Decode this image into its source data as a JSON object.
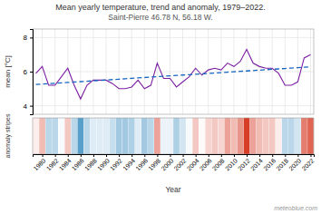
{
  "chart_data": [
    {
      "type": "line",
      "title": "Mean yearly temperature, trend and anomaly, 1979–2022.",
      "subtitle": "Saint-Pierre 46.78 N, 56.18 W.",
      "ylabel": "mean [°C]",
      "x": [
        1979,
        1980,
        1981,
        1982,
        1983,
        1984,
        1985,
        1986,
        1987,
        1988,
        1989,
        1990,
        1991,
        1992,
        1993,
        1994,
        1995,
        1996,
        1997,
        1998,
        1999,
        2000,
        2001,
        2002,
        2003,
        2004,
        2005,
        2006,
        2007,
        2008,
        2009,
        2010,
        2011,
        2012,
        2013,
        2014,
        2015,
        2016,
        2017,
        2018,
        2019,
        2020,
        2021,
        2022
      ],
      "xlim": [
        1978.5,
        2022.5
      ],
      "xticks": [
        1980,
        1982,
        1984,
        1986,
        1988,
        1990,
        1992,
        1994,
        1996,
        1998,
        2000,
        2002,
        2004,
        2006,
        2008,
        2010,
        2012,
        2014,
        2016,
        2018,
        2020,
        2022
      ],
      "ylim": [
        3.5,
        8.5
      ],
      "yticks": [
        4,
        6,
        8
      ],
      "grid": true,
      "tick_labels": "y",
      "series": [
        {
          "color": "#7b1fa2",
          "line_style": "solid",
          "values": [
            5.9,
            6.3,
            5.2,
            5.2,
            5.7,
            6.2,
            5.2,
            4.4,
            5.2,
            5.5,
            5.5,
            5.5,
            5.3,
            5.0,
            5.0,
            5.1,
            5.5,
            5.0,
            5.2,
            6.5,
            5.6,
            5.6,
            5.1,
            5.4,
            5.7,
            6.2,
            5.8,
            6.1,
            6.2,
            6.1,
            6.5,
            6.3,
            6.6,
            7.3,
            6.5,
            6.3,
            6.2,
            6.2,
            5.9,
            5.2,
            5.2,
            5.4,
            6.8,
            7.0
          ]
        },
        {
          "color": "#1565c0",
          "line_style": "dashed",
          "values": [
            5.2461,
            5.2701,
            5.2942,
            5.3183,
            5.3424,
            5.3664,
            5.3905,
            5.4146,
            5.4386,
            5.4627,
            5.4868,
            5.5109,
            5.5349,
            5.559,
            5.5831,
            5.6072,
            5.6312,
            5.6553,
            5.6794,
            5.7035,
            5.7275,
            5.7516,
            5.7757,
            5.7997,
            5.8238,
            5.8479,
            5.872,
            5.896,
            5.9201,
            5.9442,
            5.9683,
            5.9923,
            6.0164,
            6.0405,
            6.0646,
            6.0886,
            6.1127,
            6.1368,
            6.1608,
            6.1849,
            6.209,
            6.2331,
            6.2571,
            6.2812
          ]
        }
      ]
    },
    {
      "type": "heatmap",
      "xlabel": "Year",
      "ylabel": "anomaly stripes",
      "annotation": "meteoblue.com",
      "x": [
        1979,
        1980,
        1981,
        1982,
        1983,
        1984,
        1985,
        1986,
        1987,
        1988,
        1989,
        1990,
        1991,
        1992,
        1993,
        1994,
        1995,
        1996,
        1997,
        1998,
        1999,
        2000,
        2001,
        2002,
        2003,
        2004,
        2005,
        2006,
        2007,
        2008,
        2009,
        2010,
        2011,
        2012,
        2013,
        2014,
        2015,
        2016,
        2017,
        2018,
        2019,
        2020,
        2021,
        2022
      ],
      "xlim": [
        1978.5,
        2022.5
      ],
      "xticks": [
        1980,
        1982,
        1984,
        1986,
        1988,
        1990,
        1992,
        1994,
        1996,
        1998,
        2000,
        2002,
        2004,
        2006,
        2008,
        2010,
        2012,
        2014,
        2016,
        2018,
        2020,
        2022
      ],
      "grid": true,
      "tick_labels": "x",
      "values": [
        0.1364,
        0.5364,
        -0.5636,
        -0.5636,
        -0.0636,
        0.4364,
        -0.5636,
        -1.3636,
        -0.5636,
        -0.2636,
        -0.2636,
        -0.2636,
        -0.4636,
        -0.7636,
        -0.7636,
        -0.6636,
        -0.2636,
        -0.7636,
        -0.5636,
        0.7364,
        -0.1636,
        -0.1636,
        -0.6636,
        -0.3636,
        -0.0636,
        0.4364,
        0.0364,
        0.3364,
        0.4364,
        0.3364,
        0.7364,
        0.5364,
        0.8364,
        1.5364,
        0.7364,
        0.5364,
        0.4364,
        0.4364,
        0.1364,
        -0.5636,
        -0.5636,
        -0.3636,
        1.0364,
        1.2364
      ],
      "colors": [
        "#fbeeec",
        "#f1bcb4",
        "#bad7e9",
        "#bad7e9",
        "#f7fbfd",
        "#f4c8c2",
        "#bad7e9",
        "#589fca",
        "#bad7e9",
        "#dfecf5",
        "#dfecf5",
        "#dfecf5",
        "#c6deed",
        "#a2c9e1",
        "#a2c9e1",
        "#aed0e5",
        "#dfecf5",
        "#a2c9e1",
        "#bad7e9",
        "#eca298",
        "#ebf3f9",
        "#ebf3f9",
        "#aed0e5",
        "#d3e5f1",
        "#f7fbfd",
        "#f4c8c2",
        "#fefafa",
        "#f6d5d0",
        "#f4c8c2",
        "#f6d5d0",
        "#eca298",
        "#f1bcb4",
        "#e9968a",
        "#d73e28",
        "#eca298",
        "#f1bcb4",
        "#f4c8c2",
        "#f4c8c2",
        "#fbeeec",
        "#bad7e9",
        "#bad7e9",
        "#d3e5f1",
        "#e47d6e",
        "#df6452"
      ]
    }
  ]
}
